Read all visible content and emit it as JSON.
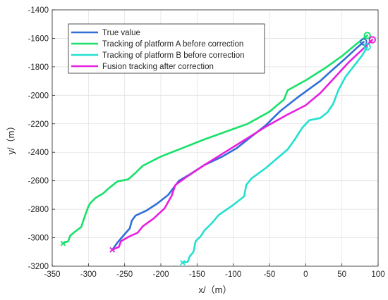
{
  "chart_data": {
    "type": "line",
    "xlabel": "x/（m）",
    "ylabel": "y/（m）",
    "xlim": [
      -350,
      100
    ],
    "ylim": [
      -3200,
      -1400
    ],
    "xticks": [
      -350,
      -300,
      -250,
      -200,
      -150,
      -100,
      -50,
      0,
      50,
      100
    ],
    "yticks": [
      -1400,
      -1600,
      -1800,
      -2000,
      -2200,
      -2400,
      -2600,
      -2800,
      -3000,
      -3200
    ],
    "grid": true,
    "legend_position": "top-left",
    "series": [
      {
        "name": "True value",
        "color": "#2f6fd6",
        "start_marker": "x",
        "end_marker": "circle",
        "points": [
          [
            -267,
            -3085
          ],
          [
            -260,
            -3035
          ],
          [
            -250,
            -2975
          ],
          [
            -243,
            -2935
          ],
          [
            -240,
            -2880
          ],
          [
            -235,
            -2845
          ],
          [
            -220,
            -2810
          ],
          [
            -205,
            -2760
          ],
          [
            -190,
            -2700
          ],
          [
            -175,
            -2600
          ],
          [
            -160,
            -2555
          ],
          [
            -140,
            -2490
          ],
          [
            -115,
            -2430
          ],
          [
            -95,
            -2370
          ],
          [
            -75,
            -2290
          ],
          [
            -55,
            -2210
          ],
          [
            -35,
            -2110
          ],
          [
            -10,
            -2010
          ],
          [
            5,
            -1955
          ],
          [
            20,
            -1900
          ],
          [
            35,
            -1830
          ],
          [
            55,
            -1740
          ],
          [
            70,
            -1670
          ],
          [
            80,
            -1625
          ]
        ]
      },
      {
        "name": "Tracking of platform A before correction",
        "color": "#19e06a",
        "start_marker": "x",
        "end_marker": "circle",
        "points": [
          [
            -335,
            -3040
          ],
          [
            -328,
            -3025
          ],
          [
            -325,
            -2985
          ],
          [
            -318,
            -2955
          ],
          [
            -310,
            -2925
          ],
          [
            -305,
            -2850
          ],
          [
            -300,
            -2780
          ],
          [
            -297,
            -2755
          ],
          [
            -290,
            -2720
          ],
          [
            -280,
            -2690
          ],
          [
            -270,
            -2645
          ],
          [
            -260,
            -2605
          ],
          [
            -245,
            -2590
          ],
          [
            -235,
            -2545
          ],
          [
            -225,
            -2495
          ],
          [
            -200,
            -2430
          ],
          [
            -170,
            -2370
          ],
          [
            -140,
            -2310
          ],
          [
            -110,
            -2255
          ],
          [
            -80,
            -2200
          ],
          [
            -50,
            -2115
          ],
          [
            -30,
            -2030
          ],
          [
            -25,
            -1965
          ],
          [
            0,
            -1895
          ],
          [
            25,
            -1815
          ],
          [
            50,
            -1725
          ],
          [
            70,
            -1640
          ],
          [
            85,
            -1580
          ]
        ]
      },
      {
        "name": "Tracking of platform B before correction",
        "color": "#22e0d0",
        "start_marker": "x",
        "end_marker": "circle",
        "points": [
          [
            -170,
            -3175
          ],
          [
            -163,
            -3170
          ],
          [
            -160,
            -3130
          ],
          [
            -155,
            -3100
          ],
          [
            -152,
            -3025
          ],
          [
            -145,
            -2990
          ],
          [
            -140,
            -2950
          ],
          [
            -130,
            -2900
          ],
          [
            -120,
            -2840
          ],
          [
            -100,
            -2770
          ],
          [
            -85,
            -2710
          ],
          [
            -82,
            -2630
          ],
          [
            -75,
            -2585
          ],
          [
            -55,
            -2510
          ],
          [
            -40,
            -2445
          ],
          [
            -25,
            -2380
          ],
          [
            -15,
            -2310
          ],
          [
            -5,
            -2230
          ],
          [
            5,
            -2175
          ],
          [
            20,
            -2160
          ],
          [
            30,
            -2120
          ],
          [
            38,
            -2060
          ],
          [
            45,
            -1965
          ],
          [
            55,
            -1870
          ],
          [
            68,
            -1785
          ],
          [
            78,
            -1720
          ],
          [
            85,
            -1660
          ]
        ]
      },
      {
        "name": "Fusion tracking after correction",
        "color": "#e81ee0",
        "start_marker": "x",
        "end_marker": "circle",
        "points": [
          [
            -267,
            -3085
          ],
          [
            -258,
            -3065
          ],
          [
            -255,
            -3025
          ],
          [
            -245,
            -2995
          ],
          [
            -232,
            -2965
          ],
          [
            -225,
            -2920
          ],
          [
            -210,
            -2865
          ],
          [
            -195,
            -2795
          ],
          [
            -185,
            -2705
          ],
          [
            -180,
            -2630
          ],
          [
            -165,
            -2575
          ],
          [
            -140,
            -2490
          ],
          [
            -110,
            -2395
          ],
          [
            -80,
            -2300
          ],
          [
            -55,
            -2220
          ],
          [
            -25,
            -2135
          ],
          [
            0,
            -2070
          ],
          [
            20,
            -1985
          ],
          [
            40,
            -1875
          ],
          [
            60,
            -1765
          ],
          [
            80,
            -1670
          ],
          [
            92,
            -1610
          ]
        ]
      }
    ]
  }
}
